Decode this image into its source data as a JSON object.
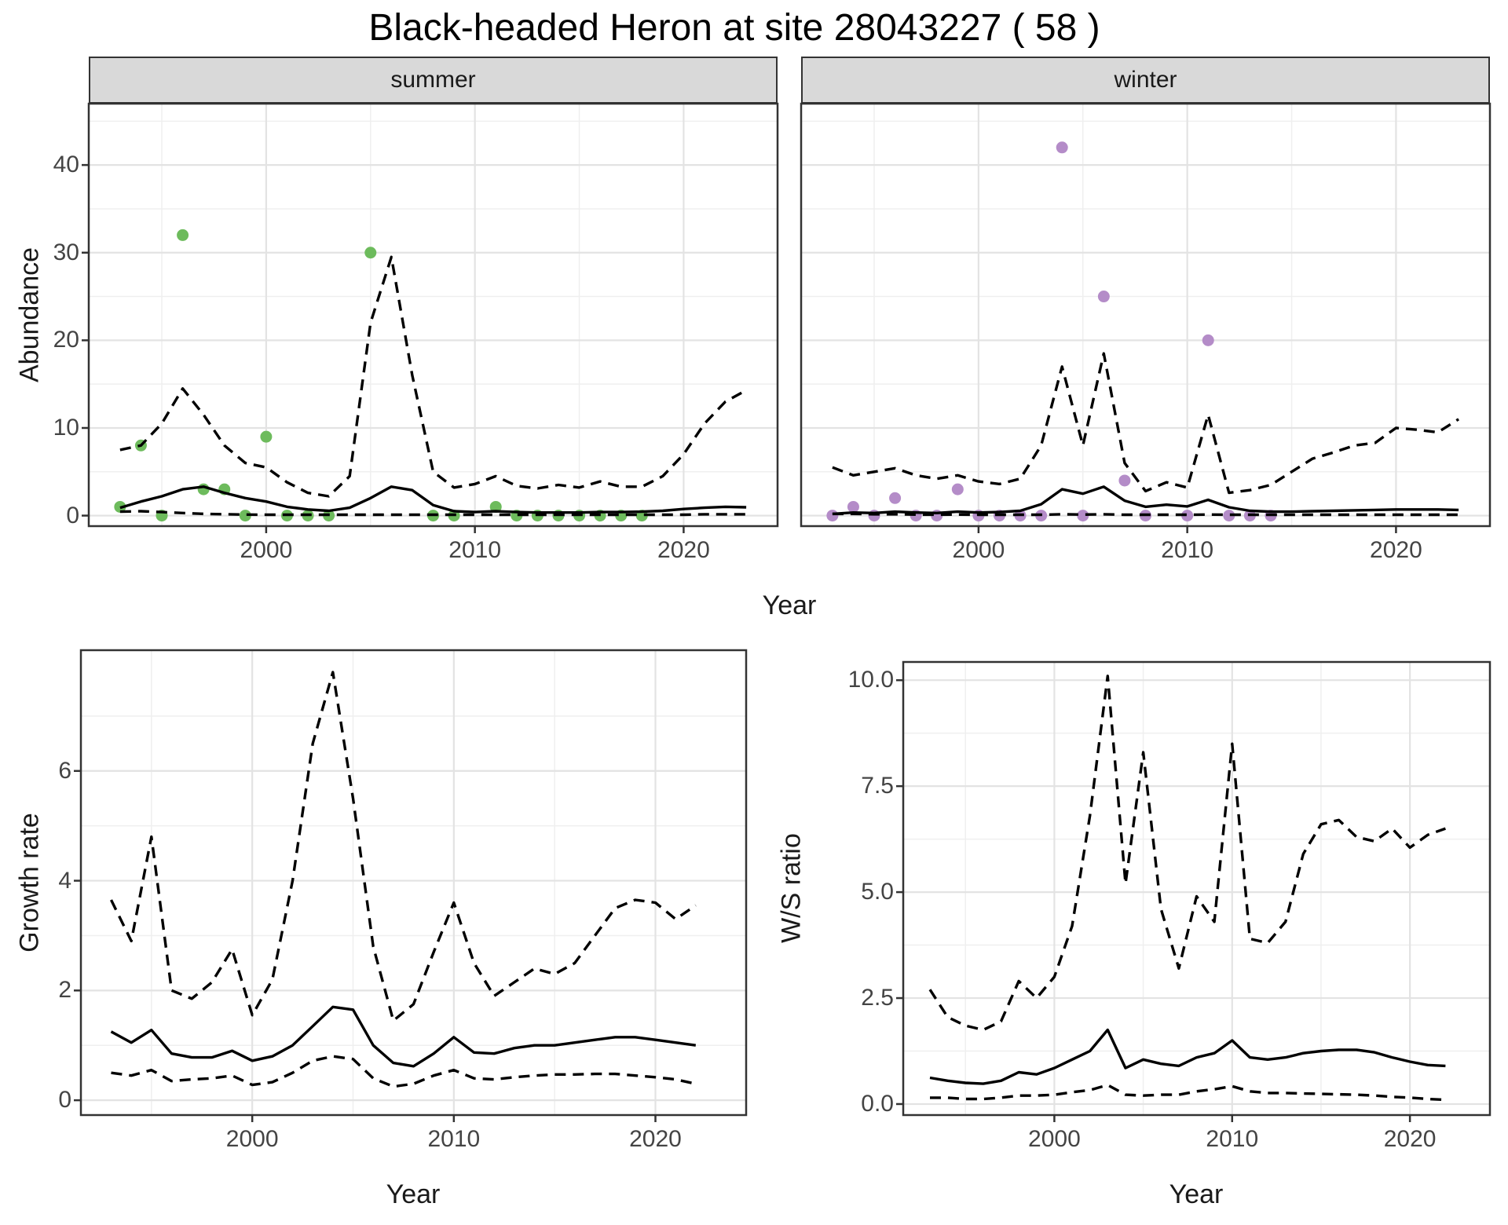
{
  "title": "Black-headed Heron at site 28043227 ( 58 )",
  "labels": {
    "abundance": "Abundance",
    "year_top": "Year",
    "year_growth": "Year",
    "year_ws": "Year",
    "growth": "Growth rate",
    "ws": "W/S ratio"
  },
  "facets": [
    {
      "label": "summer"
    },
    {
      "label": "winter"
    }
  ],
  "colors": {
    "summer_point": "#6dbb5c",
    "winter_point": "#b48cc8",
    "line": "#000000",
    "panel_border": "#333333",
    "grid_major": "#e3e3e3",
    "grid_minor": "#efefef",
    "strip_bg": "#d9d9d9",
    "tick_text": "#444444"
  },
  "chart_data": [
    {
      "id": "abundance-summer",
      "type": "scatter",
      "facet": "summer",
      "xlabel": "Year",
      "ylabel": "Abundance",
      "xlim": [
        1991.5,
        2024.5
      ],
      "ylim": [
        -1.2,
        47
      ],
      "x_tick_years": [
        2000,
        2010,
        2020
      ],
      "x_tick_labels": [
        "2000",
        "2010",
        "2020"
      ],
      "x_minor": [
        1995,
        2005,
        2015
      ],
      "y_tick_values": [
        0,
        10,
        20,
        30,
        40
      ],
      "y_tick_labels": [
        "0",
        "10",
        "20",
        "30",
        "40"
      ],
      "y_minor": [
        5,
        15,
        25,
        35,
        45
      ],
      "point_color": "#6dbb5c",
      "points": [
        [
          1993,
          1
        ],
        [
          1994,
          8
        ],
        [
          1995,
          0
        ],
        [
          1996,
          32
        ],
        [
          1997,
          3
        ],
        [
          1998,
          3
        ],
        [
          1999,
          0
        ],
        [
          2000,
          9
        ],
        [
          2001,
          0
        ],
        [
          2002,
          0
        ],
        [
          2003,
          0
        ],
        [
          2005,
          30
        ],
        [
          2008,
          0
        ],
        [
          2009,
          0
        ],
        [
          2011,
          1
        ],
        [
          2012,
          0
        ],
        [
          2013,
          0
        ],
        [
          2014,
          0
        ],
        [
          2015,
          0
        ],
        [
          2016,
          0
        ],
        [
          2017,
          0
        ],
        [
          2018,
          0
        ]
      ],
      "series": [
        {
          "name": "fit",
          "style": "solid",
          "start": 1993,
          "values": [
            0.9,
            1.6,
            2.2,
            3.0,
            3.3,
            2.6,
            2.0,
            1.6,
            1.0,
            0.7,
            0.55,
            0.9,
            2.0,
            3.3,
            2.9,
            1.2,
            0.5,
            0.4,
            0.5,
            0.4,
            0.35,
            0.35,
            0.35,
            0.4,
            0.4,
            0.45,
            0.55,
            0.75,
            0.9,
            1.0,
            0.95
          ]
        },
        {
          "name": "upper95",
          "style": "dashed",
          "start": 1993,
          "values": [
            7.5,
            8.0,
            10.5,
            14.5,
            11.5,
            8.0,
            6.0,
            5.5,
            3.8,
            2.6,
            2.2,
            4.5,
            22.0,
            29.5,
            16.0,
            5.0,
            3.2,
            3.6,
            4.5,
            3.4,
            3.1,
            3.5,
            3.2,
            3.9,
            3.3,
            3.3,
            4.5,
            7.0,
            10.5,
            13.0,
            14.3
          ]
        },
        {
          "name": "lower95",
          "style": "dashed",
          "start": 1993,
          "values": [
            0.45,
            0.5,
            0.4,
            0.3,
            0.2,
            0.15,
            0.12,
            0.1,
            0.1,
            0.1,
            0.1,
            0.1,
            0.1,
            0.1,
            0.1,
            0.1,
            0.1,
            0.1,
            0.1,
            0.1,
            0.1,
            0.1,
            0.1,
            0.1,
            0.1,
            0.1,
            0.1,
            0.1,
            0.15,
            0.15,
            0.15
          ]
        }
      ]
    },
    {
      "id": "abundance-winter",
      "type": "scatter",
      "facet": "winter",
      "xlabel": "Year",
      "ylabel": "Abundance",
      "xlim": [
        1991.5,
        2024.5
      ],
      "ylim": [
        -1.2,
        47
      ],
      "x_tick_years": [
        2000,
        2010,
        2020
      ],
      "x_tick_labels": [
        "2000",
        "2010",
        "2020"
      ],
      "x_minor": [
        1995,
        2005,
        2015
      ],
      "y_tick_values": [
        0,
        10,
        20,
        30,
        40
      ],
      "y_tick_labels": [
        "0",
        "10",
        "20",
        "30",
        "40"
      ],
      "y_minor": [
        5,
        15,
        25,
        35,
        45
      ],
      "point_color": "#b48cc8",
      "points": [
        [
          1993,
          0
        ],
        [
          1994,
          1
        ],
        [
          1995,
          0
        ],
        [
          1996,
          2
        ],
        [
          1997,
          0
        ],
        [
          1998,
          0
        ],
        [
          1999,
          3
        ],
        [
          2000,
          0
        ],
        [
          2001,
          0
        ],
        [
          2002,
          0
        ],
        [
          2003,
          0
        ],
        [
          2004,
          42
        ],
        [
          2005,
          0
        ],
        [
          2006,
          25
        ],
        [
          2007,
          4
        ],
        [
          2008,
          0
        ],
        [
          2010,
          0
        ],
        [
          2011,
          20
        ],
        [
          2012,
          0
        ],
        [
          2013,
          0
        ],
        [
          2014,
          0
        ]
      ],
      "series": [
        {
          "name": "fit",
          "style": "solid",
          "start": 1993,
          "values": [
            0.2,
            0.35,
            0.3,
            0.45,
            0.35,
            0.3,
            0.45,
            0.35,
            0.4,
            0.55,
            1.3,
            3.0,
            2.5,
            3.3,
            1.7,
            1.0,
            1.25,
            1.05,
            1.8,
            0.95,
            0.55,
            0.45,
            0.45,
            0.5,
            0.55,
            0.6,
            0.65,
            0.7,
            0.7,
            0.7,
            0.65
          ]
        },
        {
          "name": "upper95",
          "style": "dashed",
          "start": 1993,
          "values": [
            5.5,
            4.6,
            5.0,
            5.4,
            4.6,
            4.2,
            4.6,
            3.9,
            3.6,
            4.2,
            8.0,
            17.0,
            8.0,
            18.5,
            6.0,
            2.8,
            3.8,
            3.2,
            11.5,
            2.6,
            2.9,
            3.5,
            5.0,
            6.5,
            7.2,
            8.0,
            8.3,
            10.0,
            9.8,
            9.5,
            11.0
          ]
        },
        {
          "name": "lower95",
          "style": "dashed",
          "start": 1993,
          "values": [
            0.2,
            0.2,
            0.15,
            0.15,
            0.12,
            0.1,
            0.12,
            0.1,
            0.1,
            0.1,
            0.1,
            0.15,
            0.12,
            0.15,
            0.1,
            0.1,
            0.1,
            0.1,
            0.12,
            0.1,
            0.1,
            0.1,
            0.1,
            0.1,
            0.1,
            0.1,
            0.1,
            0.1,
            0.1,
            0.1,
            0.1
          ]
        }
      ]
    },
    {
      "id": "growth-rate",
      "type": "line",
      "xlabel": "Year",
      "ylabel": "Growth rate",
      "xlim": [
        1991.5,
        2024.5
      ],
      "ylim": [
        -0.27,
        8.2
      ],
      "x_tick_years": [
        2000,
        2010,
        2020
      ],
      "x_tick_labels": [
        "2000",
        "2010",
        "2020"
      ],
      "x_minor": [
        1995,
        2005,
        2015
      ],
      "y_tick_values": [
        0,
        2,
        4,
        6
      ],
      "y_tick_labels": [
        "0",
        "2",
        "4",
        "6"
      ],
      "y_minor": [
        1,
        3,
        5,
        7
      ],
      "points": [],
      "series": [
        {
          "name": "fit",
          "style": "solid",
          "start": 1993,
          "values": [
            1.25,
            1.05,
            1.28,
            0.85,
            0.78,
            0.78,
            0.9,
            0.72,
            0.8,
            1.0,
            1.35,
            1.7,
            1.65,
            1.0,
            0.68,
            0.62,
            0.85,
            1.15,
            0.87,
            0.85,
            0.95,
            1.0,
            1.0,
            1.05,
            1.1,
            1.15,
            1.15,
            1.1,
            1.05,
            1.0
          ]
        },
        {
          "name": "upper95",
          "style": "dashed",
          "start": 1993,
          "values": [
            3.65,
            2.9,
            4.8,
            2.0,
            1.85,
            2.15,
            2.75,
            1.55,
            2.2,
            4.0,
            6.5,
            7.8,
            5.5,
            2.8,
            1.45,
            1.75,
            2.7,
            3.6,
            2.5,
            1.9,
            2.15,
            2.4,
            2.3,
            2.5,
            3.0,
            3.5,
            3.65,
            3.6,
            3.3,
            3.55
          ]
        },
        {
          "name": "lower95",
          "style": "dashed",
          "start": 1993,
          "values": [
            0.5,
            0.45,
            0.55,
            0.35,
            0.38,
            0.4,
            0.45,
            0.28,
            0.33,
            0.5,
            0.72,
            0.8,
            0.75,
            0.4,
            0.25,
            0.3,
            0.45,
            0.55,
            0.4,
            0.38,
            0.42,
            0.45,
            0.47,
            0.47,
            0.48,
            0.48,
            0.45,
            0.42,
            0.38,
            0.3
          ]
        }
      ]
    },
    {
      "id": "ws-ratio",
      "type": "line",
      "xlabel": "Year",
      "ylabel": "W/S ratio",
      "xlim": [
        1991.5,
        2024.5
      ],
      "ylim": [
        -0.26,
        10.43
      ],
      "x_tick_years": [
        2000,
        2010,
        2020
      ],
      "x_tick_labels": [
        "2000",
        "2010",
        "2020"
      ],
      "x_minor": [
        1995,
        2005,
        2015
      ],
      "y_tick_values": [
        0,
        2.5,
        5,
        7.5,
        10
      ],
      "y_tick_labels": [
        "0.0",
        "2.5",
        "5.0",
        "7.5",
        "10.0"
      ],
      "y_minor": [
        1.25,
        3.75,
        6.25,
        8.75
      ],
      "points": [],
      "series": [
        {
          "name": "fit",
          "style": "solid",
          "start": 1993,
          "values": [
            0.62,
            0.55,
            0.5,
            0.48,
            0.55,
            0.75,
            0.7,
            0.85,
            1.05,
            1.25,
            1.75,
            0.85,
            1.05,
            0.95,
            0.9,
            1.1,
            1.2,
            1.5,
            1.1,
            1.05,
            1.1,
            1.2,
            1.25,
            1.28,
            1.28,
            1.22,
            1.1,
            1.0,
            0.92,
            0.9
          ]
        },
        {
          "name": "upper95",
          "style": "dashed",
          "start": 1993,
          "values": [
            2.7,
            2.05,
            1.85,
            1.75,
            1.95,
            2.9,
            2.5,
            3.0,
            4.2,
            6.8,
            10.1,
            5.2,
            8.3,
            4.6,
            3.2,
            4.9,
            4.3,
            8.5,
            3.9,
            3.8,
            4.3,
            5.9,
            6.6,
            6.7,
            6.3,
            6.2,
            6.5,
            6.05,
            6.35,
            6.5
          ]
        },
        {
          "name": "lower95",
          "style": "dashed",
          "start": 1993,
          "values": [
            0.15,
            0.15,
            0.12,
            0.12,
            0.15,
            0.2,
            0.2,
            0.22,
            0.28,
            0.33,
            0.45,
            0.22,
            0.2,
            0.22,
            0.22,
            0.3,
            0.35,
            0.42,
            0.3,
            0.26,
            0.26,
            0.25,
            0.24,
            0.23,
            0.22,
            0.2,
            0.17,
            0.15,
            0.12,
            0.1
          ]
        }
      ]
    }
  ]
}
